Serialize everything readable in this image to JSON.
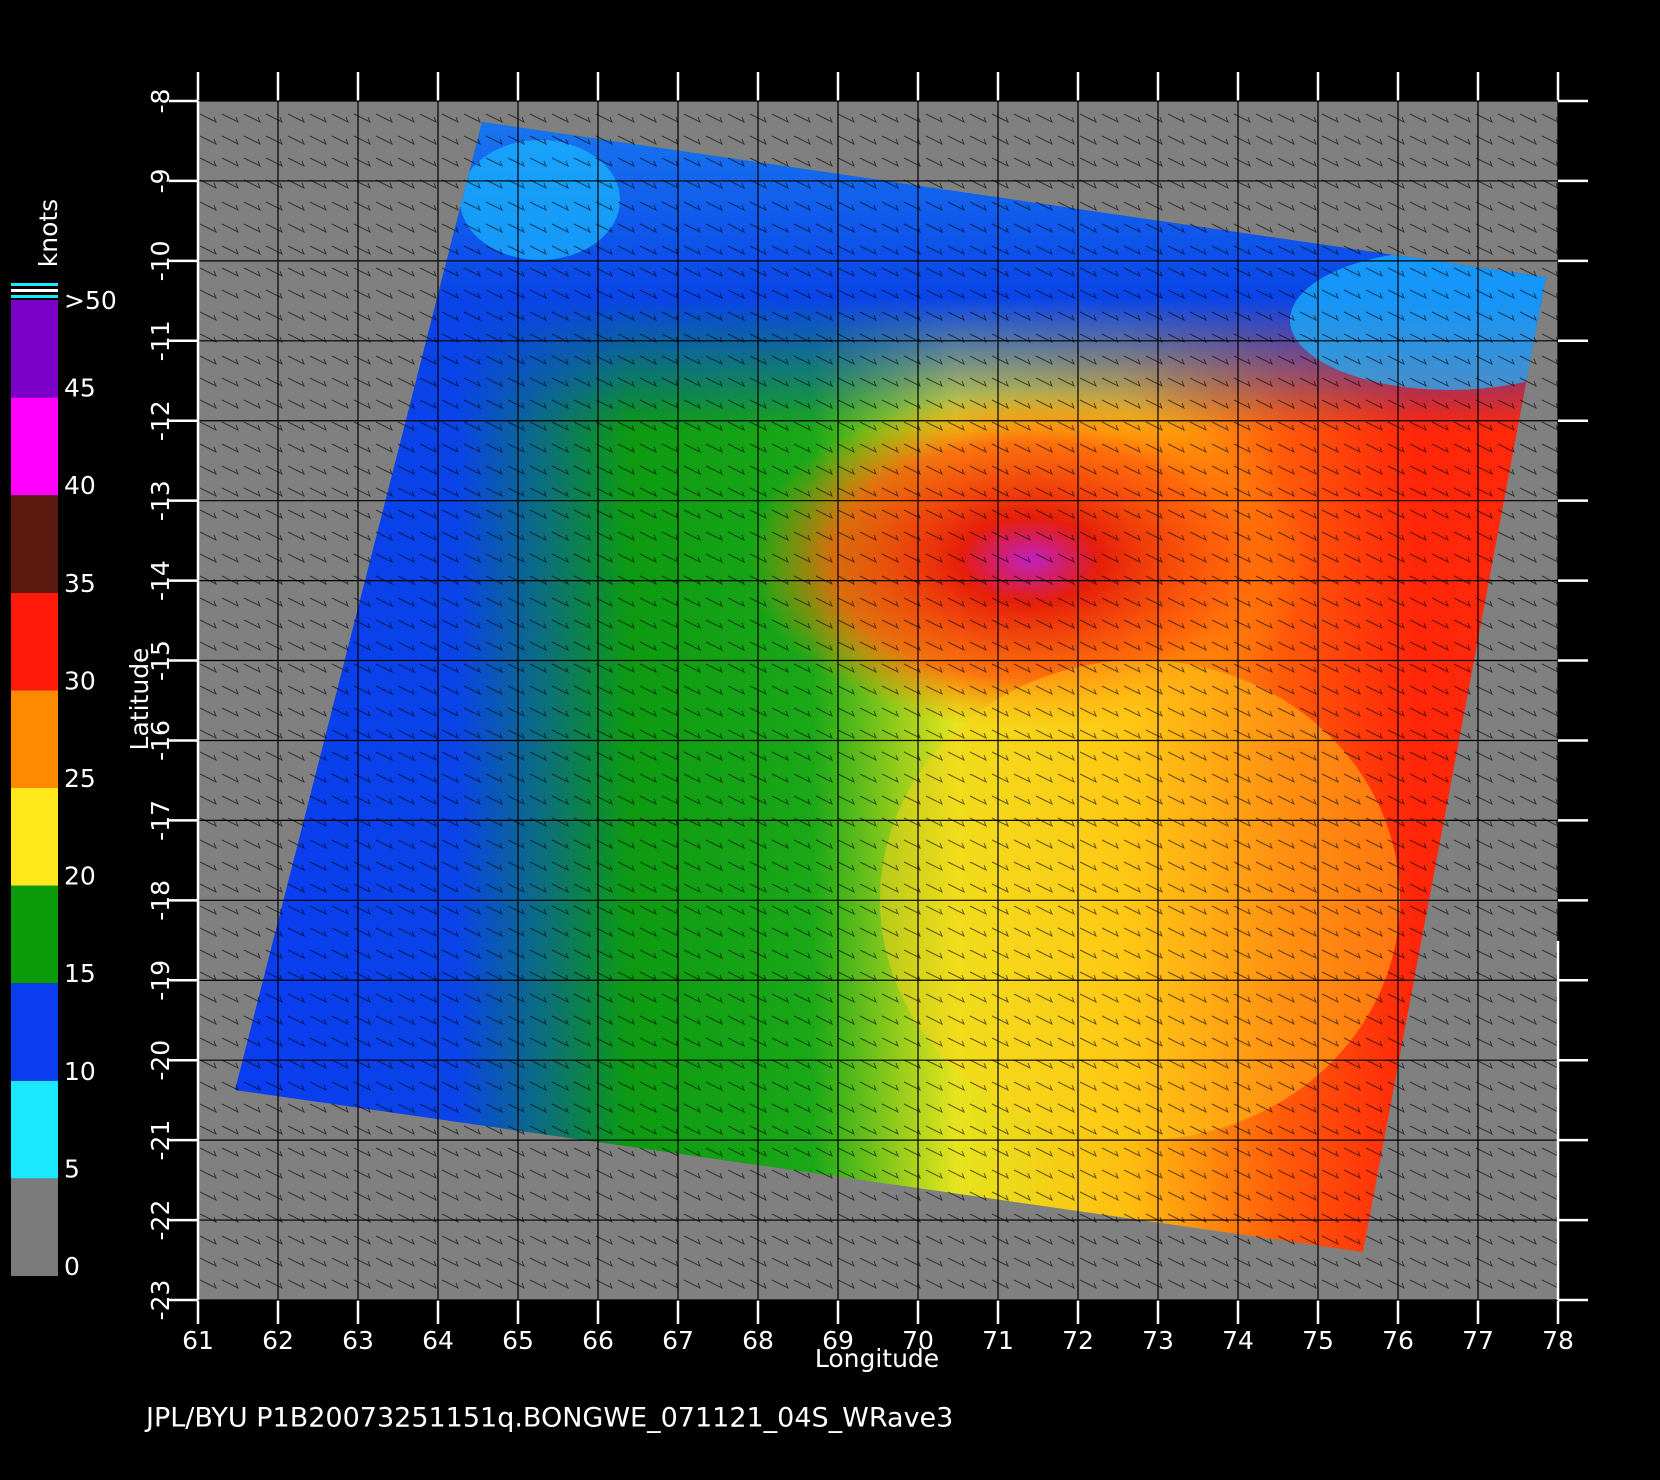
{
  "chart_data": {
    "type": "map",
    "xlabel": "Longitude",
    "ylabel": "Latitude",
    "xlim": [
      61,
      78
    ],
    "ylim": [
      -23,
      -8
    ],
    "xticks": [
      61,
      62,
      63,
      64,
      65,
      66,
      67,
      68,
      69,
      70,
      71,
      72,
      73,
      74,
      75,
      76,
      77,
      78
    ],
    "yticks": [
      -8,
      -9,
      -10,
      -11,
      -12,
      -13,
      -14,
      -15,
      -16,
      -17,
      -18,
      -19,
      -20,
      -21,
      -22,
      -23
    ],
    "grid": true,
    "colorbar": {
      "title": "knots",
      "lim": [
        0,
        50
      ],
      "ticks": [
        0,
        5,
        10,
        15,
        20,
        25,
        30,
        35,
        40,
        {
          "value": 50,
          "label": ">50"
        },
        45
      ],
      "colors": [
        "#7a7a7a",
        "#19e8ff",
        "#0a3cf0",
        "#0a9a0a",
        "#ffe81c",
        "#ff8a00",
        "#ff1a0a",
        "#5a1a10",
        "#ff00ff",
        "#7a00c8"
      ]
    },
    "footer": "JPL/BYU  P1B20073251151q.BONGWE_071121_04S_WRave3"
  }
}
